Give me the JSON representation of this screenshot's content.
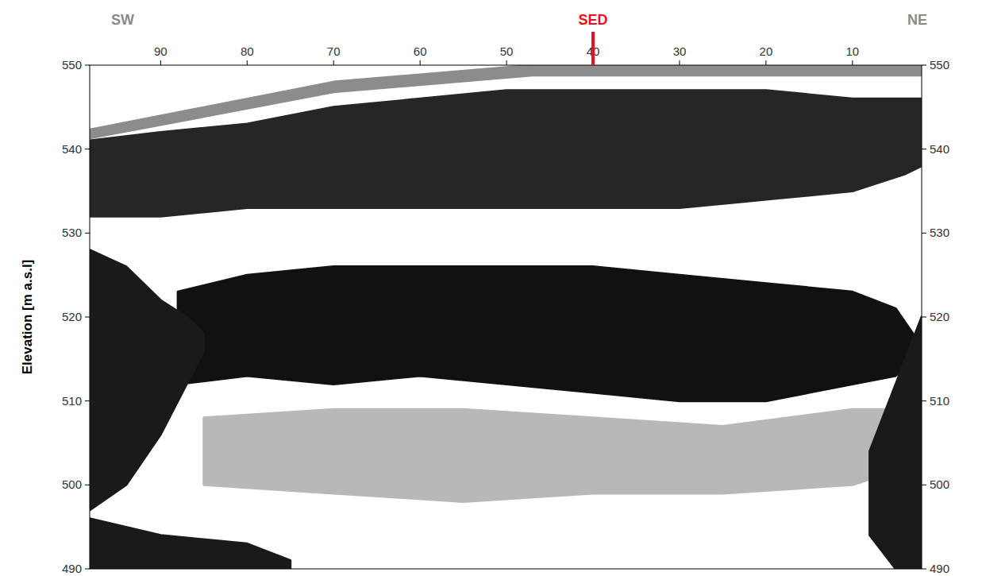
{
  "chart_data": {
    "type": "radargram",
    "y_label": "Elevation [m a.s.l]",
    "direction_labels": [
      "SW",
      "NE"
    ],
    "xlim": [
      98.2,
      2
    ],
    "xticks": [
      90,
      80,
      70,
      60,
      50,
      40,
      30,
      20,
      10
    ],
    "ylim": [
      490,
      550
    ],
    "yticks": [
      490,
      500,
      510,
      520,
      530,
      540,
      550
    ],
    "annotations": [
      {
        "text": "SED",
        "x": 40,
        "color": "#e8121a"
      }
    ],
    "bands": [
      {
        "color": "#b8b8b8",
        "x": [
          85,
          70,
          55,
          40,
          25,
          10,
          4
        ],
        "top": [
          508,
          509,
          509,
          508,
          507,
          509,
          509
        ],
        "bottom": [
          500,
          499,
          498,
          499,
          499,
          500,
          502
        ]
      },
      {
        "color": "#111111",
        "x": [
          88,
          80,
          70,
          60,
          50,
          40,
          30,
          20,
          10,
          5,
          3
        ],
        "top": [
          523,
          525,
          526,
          526,
          526,
          526,
          525,
          524,
          523,
          521,
          518
        ],
        "bottom": [
          512,
          513,
          512,
          513,
          512,
          511,
          510,
          510,
          512,
          513,
          515
        ]
      },
      {
        "color": "#262626",
        "x": [
          98.2,
          90,
          80,
          70,
          60,
          50,
          40,
          30,
          20,
          10,
          4,
          2
        ],
        "top": [
          541,
          542,
          543,
          545,
          546,
          547,
          547,
          547,
          547,
          546,
          546,
          546
        ],
        "bottom": [
          532,
          532,
          533,
          533,
          533,
          533,
          533,
          533,
          534,
          535,
          537,
          538
        ]
      },
      {
        "color": "#1a1a1a",
        "x": [
          98.2,
          94,
          90,
          87,
          85
        ],
        "top": [
          528,
          526,
          522,
          520,
          518
        ],
        "bottom": [
          497,
          500,
          506,
          512,
          516
        ]
      },
      {
        "color": "#1a1a1a",
        "x": [
          8,
          5,
          2
        ],
        "top": [
          504,
          512,
          520
        ],
        "bottom": [
          494,
          490,
          490
        ]
      },
      {
        "color": "#1a1a1a",
        "x": [
          98.2,
          90,
          80,
          75
        ],
        "top": [
          496,
          494,
          493,
          491
        ],
        "bottom": [
          490,
          490,
          490,
          490
        ]
      },
      {
        "color": "#8c8c8c",
        "x": [
          98.2,
          70,
          47,
          2
        ],
        "top": [
          542.3,
          548,
          550,
          550
        ],
        "bottom": [
          541.3,
          546.8,
          548.8,
          548.8
        ]
      }
    ]
  }
}
